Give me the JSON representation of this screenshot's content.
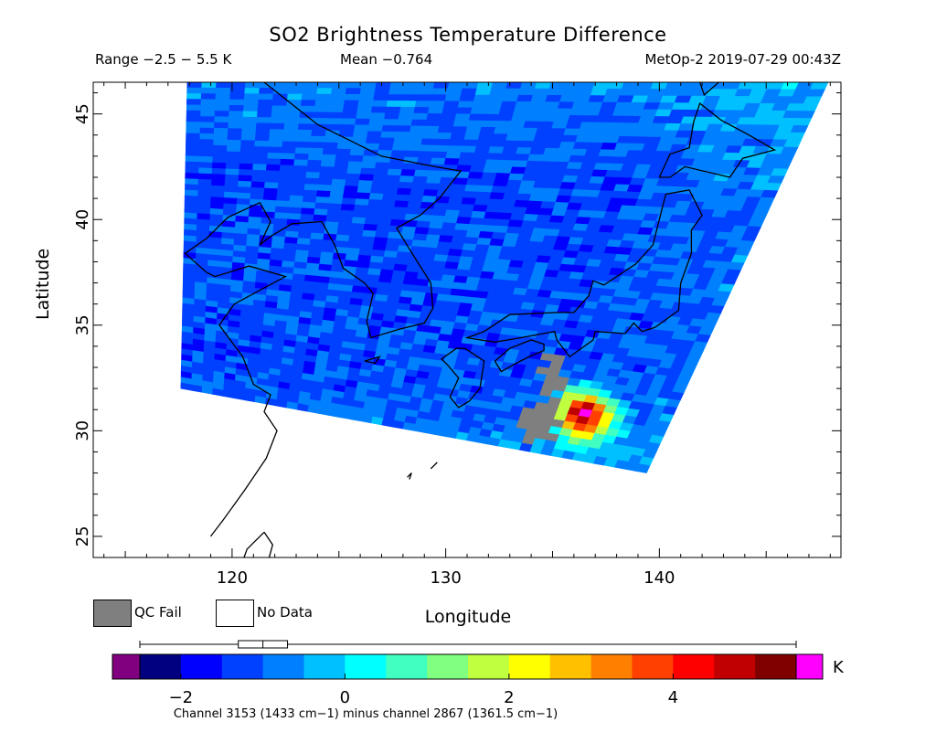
{
  "header": {
    "title": "SO2 Brightness Temperature Difference",
    "range": "Range −2.5 − 5.5 K",
    "mean": "Mean −0.764",
    "satellite_time": "MetOp-2 2019-07-29 00:43Z"
  },
  "chart_data": {
    "type": "heatmap",
    "title": "SO2 Brightness Temperature Difference",
    "xlabel": "Longitude",
    "ylabel": "Latitude",
    "xlim": [
      113.5,
      148.5
    ],
    "ylim": [
      24,
      46.5
    ],
    "x_ticks": [
      120,
      130,
      140
    ],
    "y_ticks": [
      25,
      30,
      35,
      40,
      45
    ],
    "x_tick_labels": [
      "120",
      "130",
      "140"
    ],
    "y_tick_labels": [
      "25",
      "30",
      "35",
      "40",
      "45"
    ],
    "grid": false,
    "value_range": [
      -2.5,
      5.5
    ],
    "units": "K",
    "mean": -0.764,
    "colorbar": {
      "ticks": [
        -2,
        0,
        2,
        4
      ],
      "tick_labels": [
        "−2",
        "0",
        "2",
        "4"
      ],
      "unit": "K",
      "colors": [
        "#000080",
        "#0000ff",
        "#0040ff",
        "#0080ff",
        "#00c0ff",
        "#00ffff",
        "#40ffc0",
        "#80ff80",
        "#c0ff40",
        "#ffff00",
        "#ffc000",
        "#ff8000",
        "#ff4000",
        "#ff0000",
        "#c00000",
        "#800000"
      ],
      "under_color": "#800080",
      "over_color": "#ff00ff",
      "boxplot": {
        "min": -2.5,
        "q1": -1.3,
        "median": -1.0,
        "q3": -0.7,
        "max": 5.5
      }
    },
    "swath": {
      "corners_lonlat": [
        [
          117.9,
          46.5
        ],
        [
          147.9,
          46.5
        ],
        [
          139.4,
          28.0
        ],
        [
          117.6,
          32.0
        ]
      ],
      "background_value": -1.2,
      "features": [
        {
          "kind": "plume",
          "lon": 136.5,
          "lat": 30.7,
          "peak": 5.0,
          "radius_deg": 1.6
        },
        {
          "kind": "qc_fail",
          "lon_range": [
            133.5,
            135.3
          ],
          "lat_range": [
            29.5,
            31.5
          ]
        },
        {
          "kind": "qc_fail",
          "lon_range": [
            134.5,
            135.5
          ],
          "lat_range": [
            31.5,
            33.5
          ]
        }
      ]
    },
    "coastlines": "East Asia: China, Korea, Japan"
  },
  "legend": {
    "qc_fail_label": "QC Fail",
    "no_data_label": "No Data",
    "qc_fail_color": "#7f7f7f"
  },
  "footnote": "Channel 3153 (1433 cm−1) minus channel 2867 (1361.5 cm−1)"
}
